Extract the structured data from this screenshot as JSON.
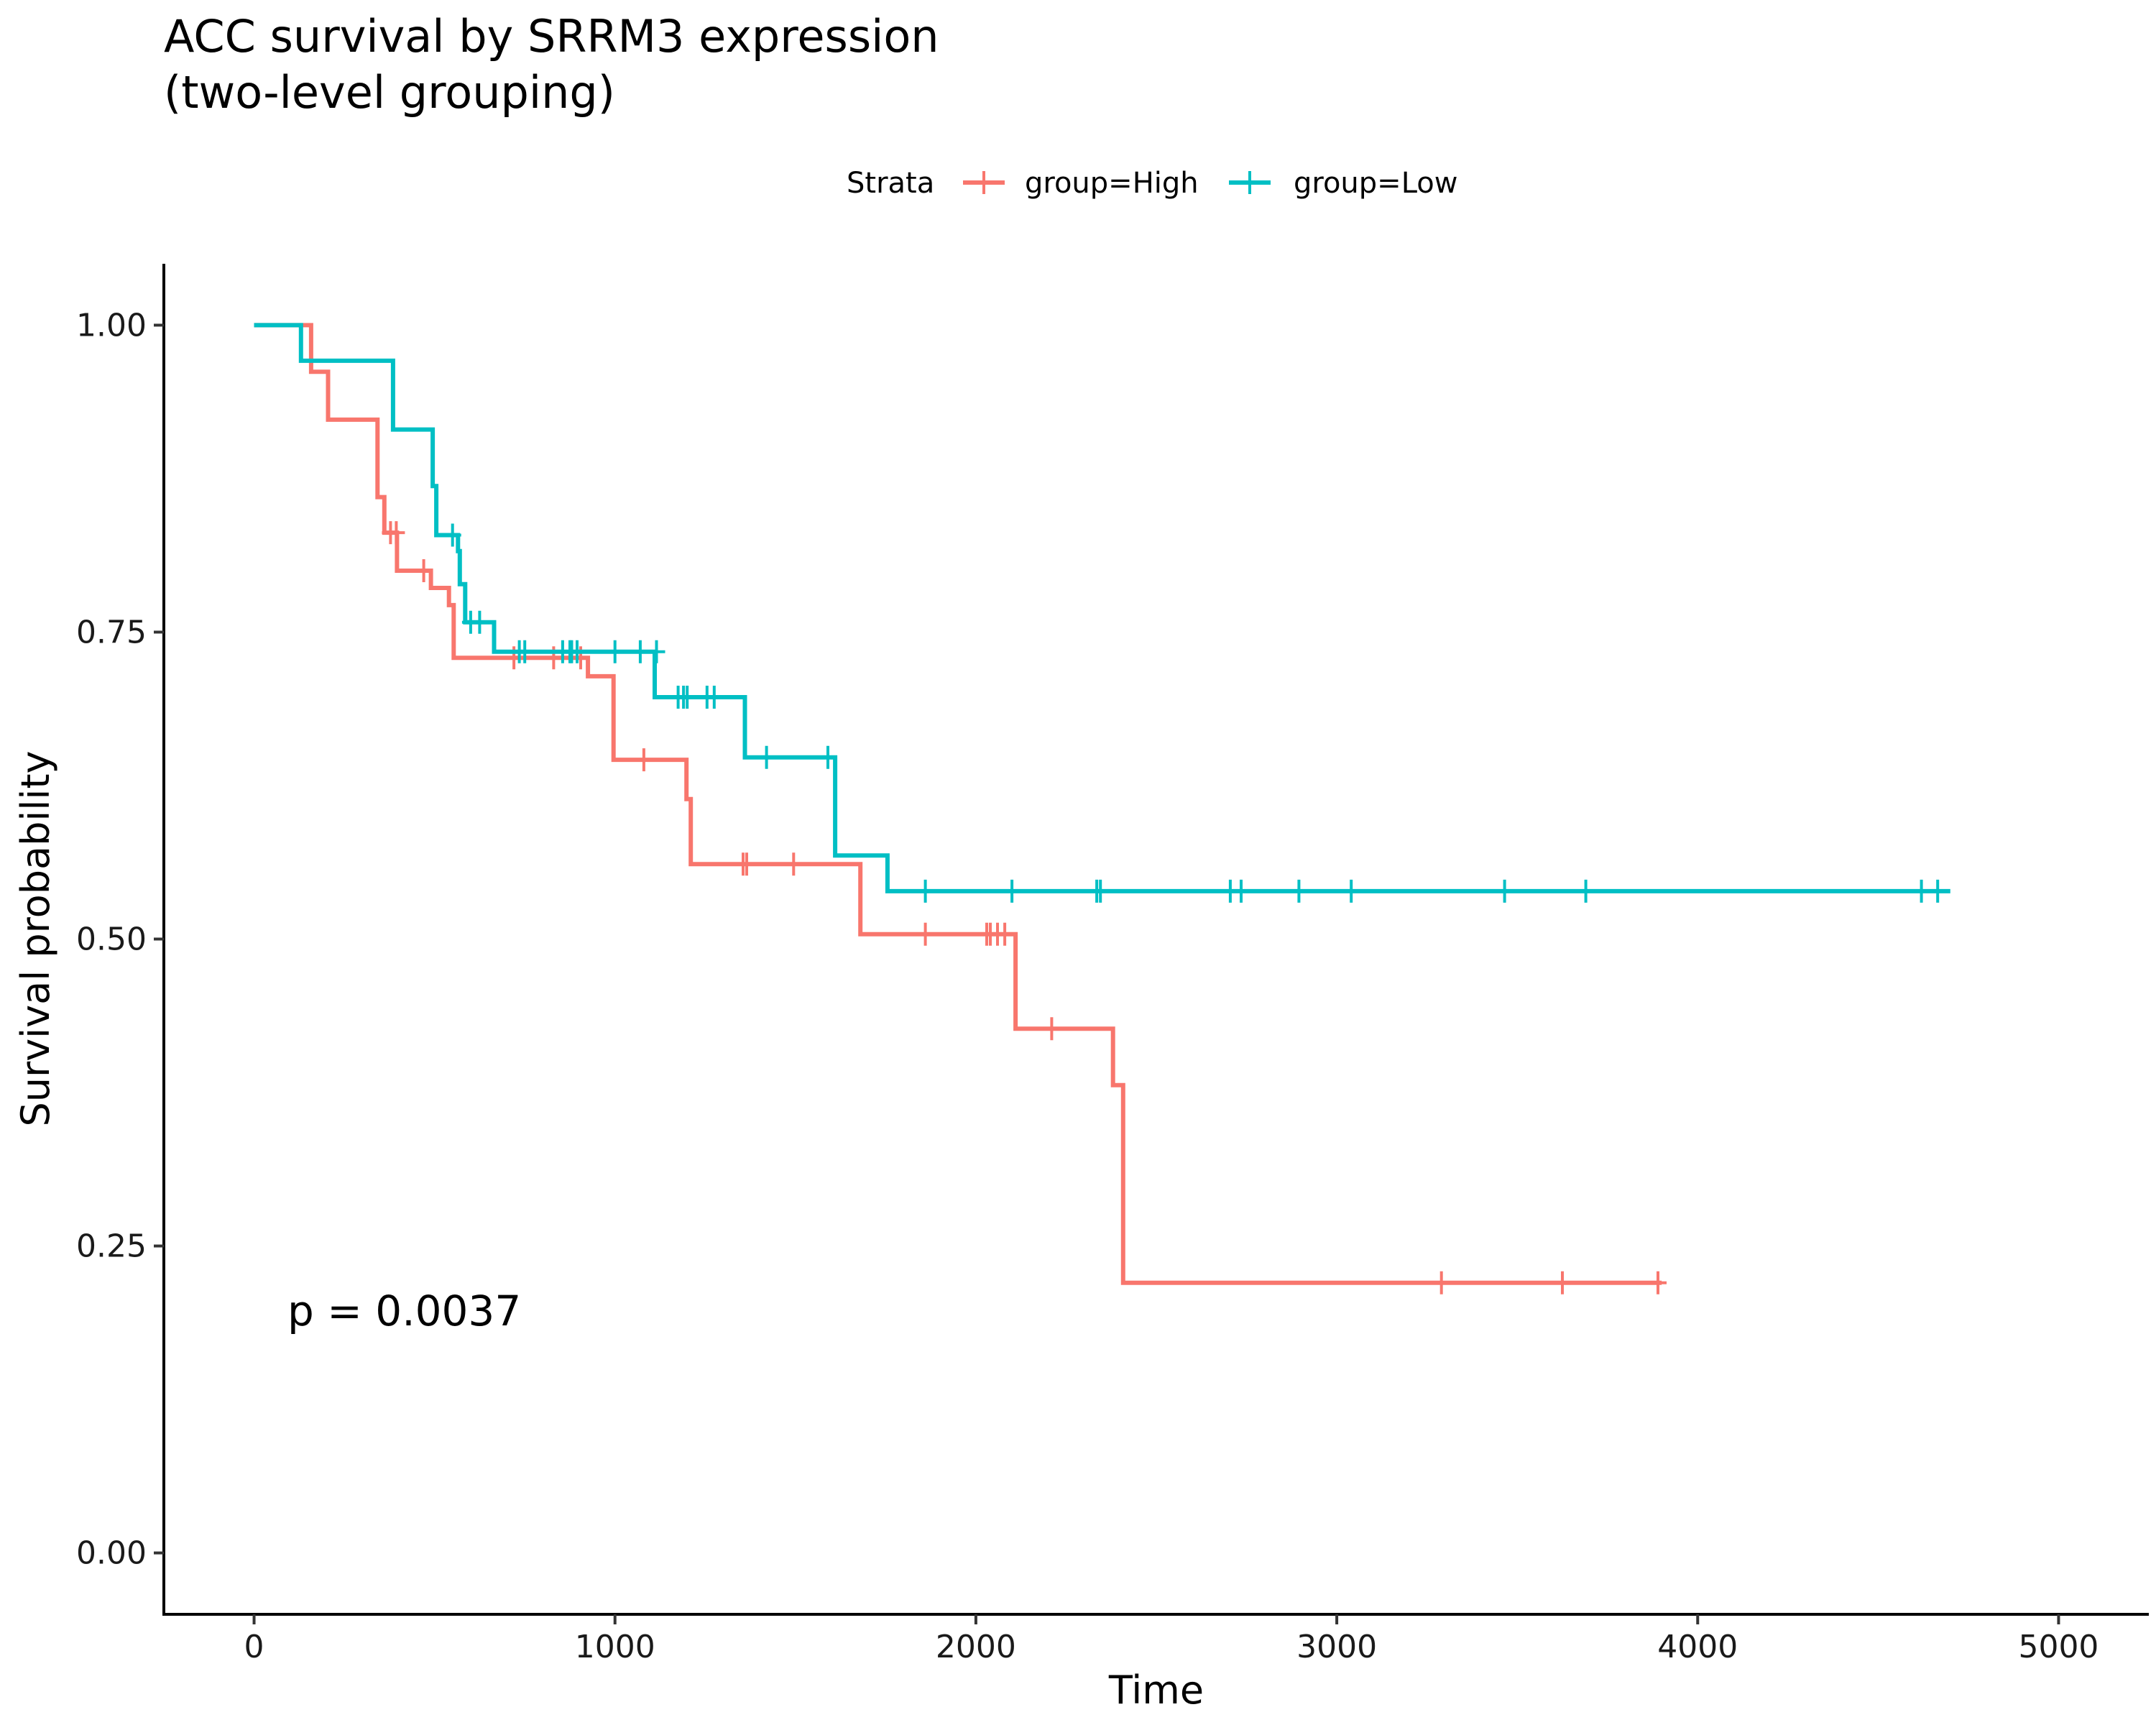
{
  "chart_data": {
    "type": "line",
    "title": [
      "ACC survival by SRRM3 expression",
      "(two-level grouping)"
    ],
    "xlabel": "Time",
    "ylabel": "Survival probability",
    "xlim": [
      -250,
      5250
    ],
    "ylim": [
      -0.05,
      1.05
    ],
    "x_ticks": [
      0,
      1000,
      2000,
      3000,
      4000,
      5000
    ],
    "y_ticks": [
      0,
      0.25,
      0.5,
      0.75,
      1
    ],
    "y_tick_labels": [
      "0.00",
      "0.25",
      "0.50",
      "0.75",
      "1.00"
    ],
    "grid": false,
    "legend": {
      "position": "top",
      "title": "Strata",
      "entries": [
        "group=High",
        "group=Low"
      ]
    },
    "annotation": "p = 0.0037",
    "series": [
      {
        "name": "group=High",
        "color": "#F8766D",
        "steps": [
          [
            0,
            1.0
          ],
          [
            158,
            0.962
          ],
          [
            205,
            0.923
          ],
          [
            342,
            0.86
          ],
          [
            361,
            0.831
          ],
          [
            396,
            0.8
          ],
          [
            490,
            0.786
          ],
          [
            540,
            0.772
          ],
          [
            553,
            0.729
          ],
          [
            925,
            0.714
          ],
          [
            996,
            0.646
          ],
          [
            1198,
            0.614
          ],
          [
            1210,
            0.561
          ],
          [
            1680,
            0.504
          ],
          [
            2110,
            0.427
          ],
          [
            2380,
            0.381
          ],
          [
            2408,
            0.22
          ],
          [
            3900,
            0.22
          ]
        ],
        "censored": [
          [
            378,
            0.831
          ],
          [
            394,
            0.831
          ],
          [
            470,
            0.8
          ],
          [
            720,
            0.729
          ],
          [
            830,
            0.729
          ],
          [
            905,
            0.729
          ],
          [
            1080,
            0.646
          ],
          [
            1355,
            0.561
          ],
          [
            1365,
            0.561
          ],
          [
            1495,
            0.561
          ],
          [
            1860,
            0.504
          ],
          [
            2030,
            0.504
          ],
          [
            2040,
            0.504
          ],
          [
            2060,
            0.504
          ],
          [
            2080,
            0.504
          ],
          [
            2210,
            0.427
          ],
          [
            3290,
            0.22
          ],
          [
            3625,
            0.22
          ],
          [
            3890,
            0.22
          ]
        ]
      },
      {
        "name": "group=Low",
        "color": "#00BFC4",
        "steps": [
          [
            0,
            1.0
          ],
          [
            130,
            0.971
          ],
          [
            385,
            0.915
          ],
          [
            495,
            0.869
          ],
          [
            505,
            0.829
          ],
          [
            565,
            0.816
          ],
          [
            570,
            0.789
          ],
          [
            585,
            0.758
          ],
          [
            665,
            0.734
          ],
          [
            1110,
            0.697
          ],
          [
            1360,
            0.648
          ],
          [
            1610,
            0.568
          ],
          [
            1755,
            0.539
          ],
          [
            4700,
            0.539
          ]
        ],
        "censored": [
          [
            550,
            0.829
          ],
          [
            600,
            0.758
          ],
          [
            625,
            0.758
          ],
          [
            735,
            0.734
          ],
          [
            750,
            0.734
          ],
          [
            855,
            0.734
          ],
          [
            875,
            0.734
          ],
          [
            880,
            0.734
          ],
          [
            895,
            0.734
          ],
          [
            1000,
            0.734
          ],
          [
            1070,
            0.734
          ],
          [
            1115,
            0.734
          ],
          [
            1175,
            0.697
          ],
          [
            1190,
            0.697
          ],
          [
            1200,
            0.697
          ],
          [
            1255,
            0.697
          ],
          [
            1275,
            0.697
          ],
          [
            1420,
            0.648
          ],
          [
            1590,
            0.648
          ],
          [
            1860,
            0.539
          ],
          [
            2100,
            0.539
          ],
          [
            2335,
            0.539
          ],
          [
            2345,
            0.539
          ],
          [
            2705,
            0.539
          ],
          [
            2735,
            0.539
          ],
          [
            2895,
            0.539
          ],
          [
            3040,
            0.539
          ],
          [
            3465,
            0.539
          ],
          [
            3690,
            0.539
          ],
          [
            4620,
            0.539
          ],
          [
            4665,
            0.539
          ]
        ]
      }
    ]
  }
}
